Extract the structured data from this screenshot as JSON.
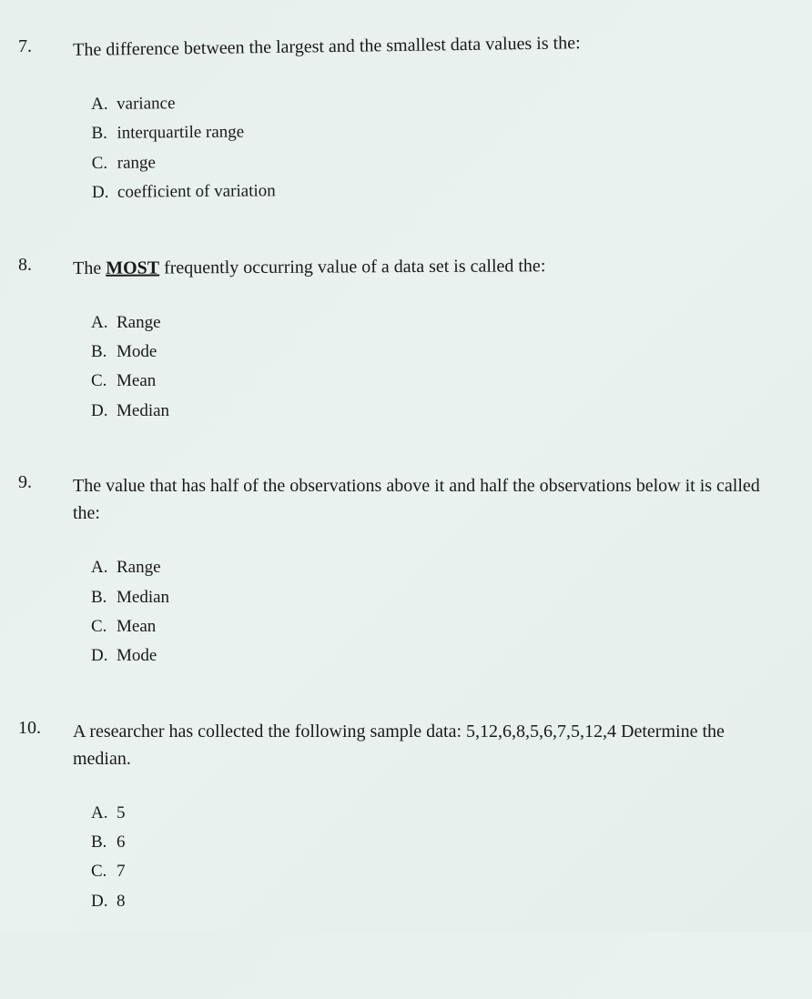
{
  "background_gradient": [
    "#e8f0ee",
    "#eaf2f0",
    "#e5eeeb"
  ],
  "text_color": "#1a1a1a",
  "font_family": "Georgia, Times New Roman, serif",
  "question_fontsize": 20,
  "option_fontsize": 19,
  "questions": [
    {
      "number": "7.",
      "text_before": "The difference between the largest and the smallest data values is the:",
      "text_underline": "",
      "text_after": "",
      "options": [
        {
          "letter": "A.",
          "text": "variance"
        },
        {
          "letter": "B.",
          "text": "interquartile range"
        },
        {
          "letter": "C.",
          "text": "range"
        },
        {
          "letter": "D.",
          "text": "coefficient of variation"
        }
      ]
    },
    {
      "number": "8.",
      "text_before": "The ",
      "text_underline": "MOST",
      "text_after": " frequently occurring value of a data set is called the:",
      "options": [
        {
          "letter": "A.",
          "text": "Range"
        },
        {
          "letter": "B.",
          "text": "Mode"
        },
        {
          "letter": "C.",
          "text": "Mean"
        },
        {
          "letter": "D.",
          "text": "Median"
        }
      ]
    },
    {
      "number": "9.",
      "text_before": "The value that has half of the observations above it and half the observations below it is called the:",
      "text_underline": "",
      "text_after": "",
      "options": [
        {
          "letter": "A.",
          "text": "Range"
        },
        {
          "letter": "B.",
          "text": "Median"
        },
        {
          "letter": "C.",
          "text": "Mean"
        },
        {
          "letter": "D.",
          "text": "Mode"
        }
      ]
    },
    {
      "number": "10.",
      "text_before": "A researcher has collected the following sample data: 5,12,6,8,5,6,7,5,12,4 Determine the median.",
      "text_underline": "",
      "text_after": "",
      "options": [
        {
          "letter": "A.",
          "text": "5"
        },
        {
          "letter": "B.",
          "text": "6"
        },
        {
          "letter": "C.",
          "text": "7"
        },
        {
          "letter": "D.",
          "text": "8"
        }
      ]
    }
  ]
}
